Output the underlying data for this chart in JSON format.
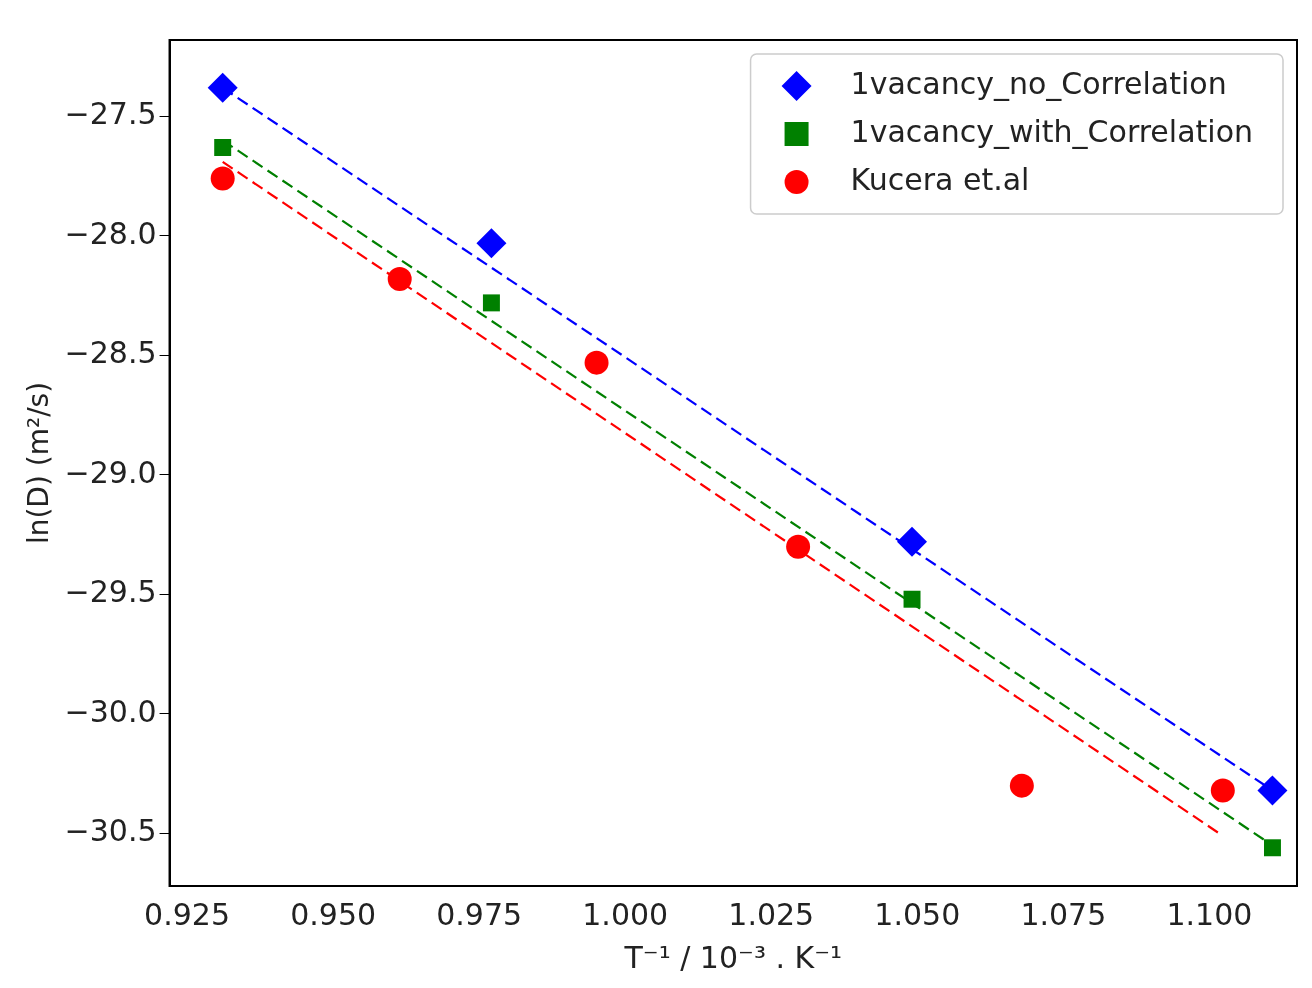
{
  "chart_data": {
    "type": "scatter",
    "xlabel": "T⁻¹ / 10⁻³ . K⁻¹",
    "ylabel": "ln(D) (m²/s)",
    "xlim": [
      0.922,
      1.115
    ],
    "ylim": [
      -30.72,
      -27.18
    ],
    "xticks": [
      {
        "value": 0.925,
        "label": "0.925"
      },
      {
        "value": 0.95,
        "label": "0.950"
      },
      {
        "value": 0.975,
        "label": "0.975"
      },
      {
        "value": 1.0,
        "label": "1.000"
      },
      {
        "value": 1.025,
        "label": "1.025"
      },
      {
        "value": 1.05,
        "label": "1.050"
      },
      {
        "value": 1.075,
        "label": "1.075"
      },
      {
        "value": 1.1,
        "label": "1.100"
      }
    ],
    "yticks": [
      {
        "value": -30.5,
        "label": "−30.5"
      },
      {
        "value": -30.0,
        "label": "−30.0"
      },
      {
        "value": -29.5,
        "label": "−29.5"
      },
      {
        "value": -29.0,
        "label": "−29.0"
      },
      {
        "value": -28.5,
        "label": "−28.5"
      },
      {
        "value": -28.0,
        "label": "−28.0"
      },
      {
        "value": -27.5,
        "label": "−27.5"
      }
    ],
    "grid": false,
    "legend": "top right",
    "series": [
      {
        "name": "1vacancy_no_Correlation",
        "color": "#0000ff",
        "marker": "diamond",
        "x": [
          0.9311,
          0.9771,
          1.0491,
          1.1108
        ],
        "values": [
          -27.38,
          -28.03,
          -29.28,
          -30.32
        ]
      },
      {
        "name": "1vacancy_with_Correlation",
        "color": "#008000",
        "marker": "square",
        "x": [
          0.9311,
          0.9771,
          1.0491,
          1.1108
        ],
        "values": [
          -27.63,
          -28.28,
          -29.52,
          -30.56
        ]
      },
      {
        "name": "Kucera et.al",
        "color": "#ff0000",
        "marker": "circle",
        "x": [
          0.9311,
          0.9614,
          0.9951,
          1.0296,
          1.0679,
          1.1023
        ],
        "values": [
          -27.76,
          -28.18,
          -28.53,
          -29.3,
          -30.3,
          -30.32
        ]
      },
      {
        "type": "line",
        "color": "#0000ff",
        "line_style": "dashed",
        "marker": "none",
        "x": [
          0.9311,
          1.1108
        ],
        "values": [
          -27.38,
          -30.32
        ]
      },
      {
        "type": "line",
        "color": "#008000",
        "line_style": "dashed",
        "marker": "none",
        "x": [
          0.9311,
          1.1108
        ],
        "values": [
          -27.6,
          -30.55
        ]
      },
      {
        "type": "line",
        "color": "#ff0000",
        "line_style": "dashed",
        "marker": "none",
        "x": [
          0.9311,
          1.1023
        ],
        "values": [
          -27.69,
          -30.51
        ]
      }
    ]
  }
}
